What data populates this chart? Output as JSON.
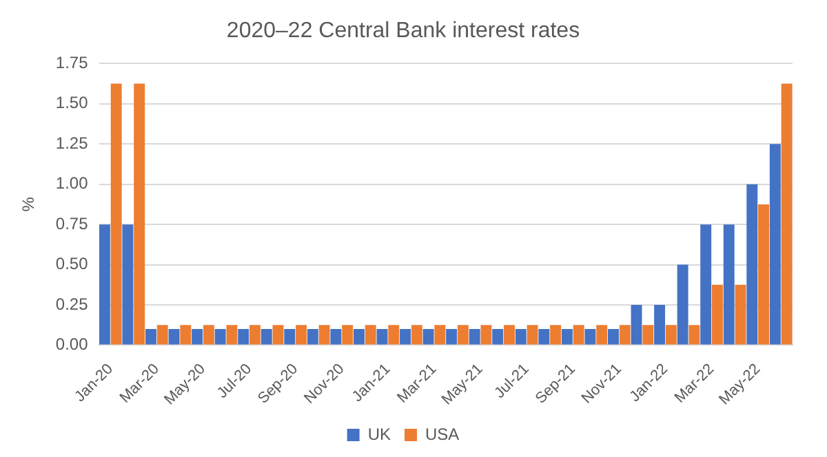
{
  "chart_data": {
    "type": "bar",
    "title": "2020–22 Central Bank interest rates",
    "ylabel": "%",
    "categories": [
      "Jan-20",
      null,
      "Mar-20",
      null,
      "May-20",
      null,
      "Jul-20",
      null,
      "Sep-20",
      null,
      "Nov-20",
      null,
      "Jan-21",
      null,
      "Mar-21",
      null,
      "May-21",
      null,
      "Jul-21",
      null,
      "Sep-21",
      null,
      "Nov-21",
      null,
      "Jan-22",
      null,
      "Mar-22",
      null,
      "May-22",
      null
    ],
    "series": [
      {
        "name": "UK",
        "color": "#4472c4",
        "values": [
          0.75,
          0.75,
          0.1,
          0.1,
          0.1,
          0.1,
          0.1,
          0.1,
          0.1,
          0.1,
          0.1,
          0.1,
          0.1,
          0.1,
          0.1,
          0.1,
          0.1,
          0.1,
          0.1,
          0.1,
          0.1,
          0.1,
          0.1,
          0.25,
          0.25,
          0.5,
          0.75,
          0.75,
          1.0,
          1.25
        ]
      },
      {
        "name": "USA",
        "color": "#ed7d31",
        "values": [
          1.625,
          1.625,
          0.125,
          0.125,
          0.125,
          0.125,
          0.125,
          0.125,
          0.125,
          0.125,
          0.125,
          0.125,
          0.125,
          0.125,
          0.125,
          0.125,
          0.125,
          0.125,
          0.125,
          0.125,
          0.125,
          0.125,
          0.125,
          0.125,
          0.125,
          0.125,
          0.375,
          0.375,
          0.875,
          1.625
        ]
      }
    ],
    "ylim": [
      0,
      1.75
    ],
    "yticks": [
      {
        "value": 0,
        "label": "0.00"
      },
      {
        "value": 0.25,
        "label": "0.25"
      },
      {
        "value": 0.5,
        "label": "0.50"
      },
      {
        "value": 0.75,
        "label": "0.75"
      },
      {
        "value": 1,
        "label": "1.00"
      },
      {
        "value": 1.25,
        "label": "1.25"
      },
      {
        "value": 1.5,
        "label": "1.50"
      },
      {
        "value": 1.75,
        "label": "1.75"
      }
    ],
    "grid": "y",
    "legend": "bottom"
  }
}
